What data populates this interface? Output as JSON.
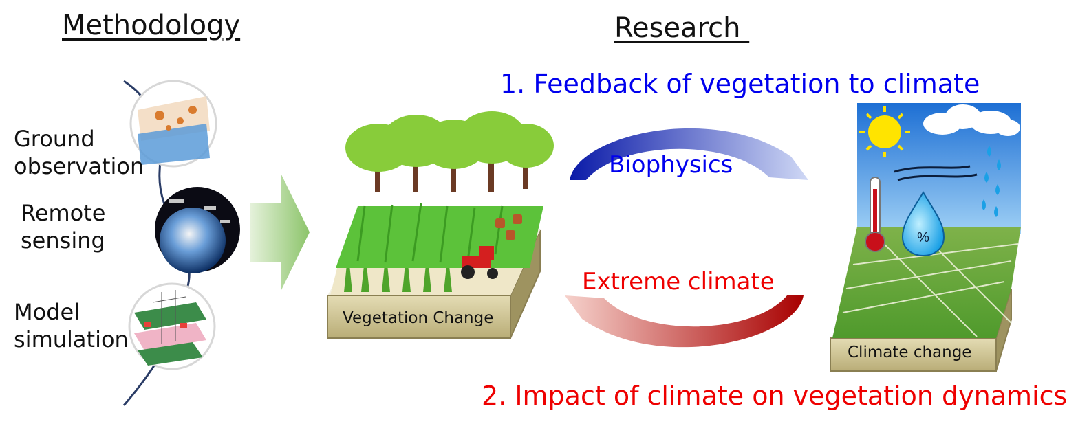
{
  "headers": {
    "methodology": "Methodology",
    "research": "Research "
  },
  "methods": [
    {
      "label": "Ground\nobservation"
    },
    {
      "label": "Remote\nsensing"
    },
    {
      "label": "Model\nsimulation"
    }
  ],
  "research": {
    "q1": "1. Feedback of vegetation to climate",
    "q2": "2. Impact of climate on vegetation dynamics",
    "arrow_top_label": "Biophysics",
    "arrow_bottom_label": "Extreme climate"
  },
  "blocks": {
    "vegetation": "Vegetation Change",
    "climate": "Climate change"
  },
  "colors": {
    "blue": "#0000ee",
    "red": "#ee0000",
    "green_arrow": "#a8d48a",
    "soil": "#d8cfa0"
  },
  "icons": [
    "percent-drop-icon",
    "sun-icon",
    "cloud-icon",
    "rain-icon",
    "wind-icon",
    "thermometer-icon",
    "tractor-icon"
  ]
}
